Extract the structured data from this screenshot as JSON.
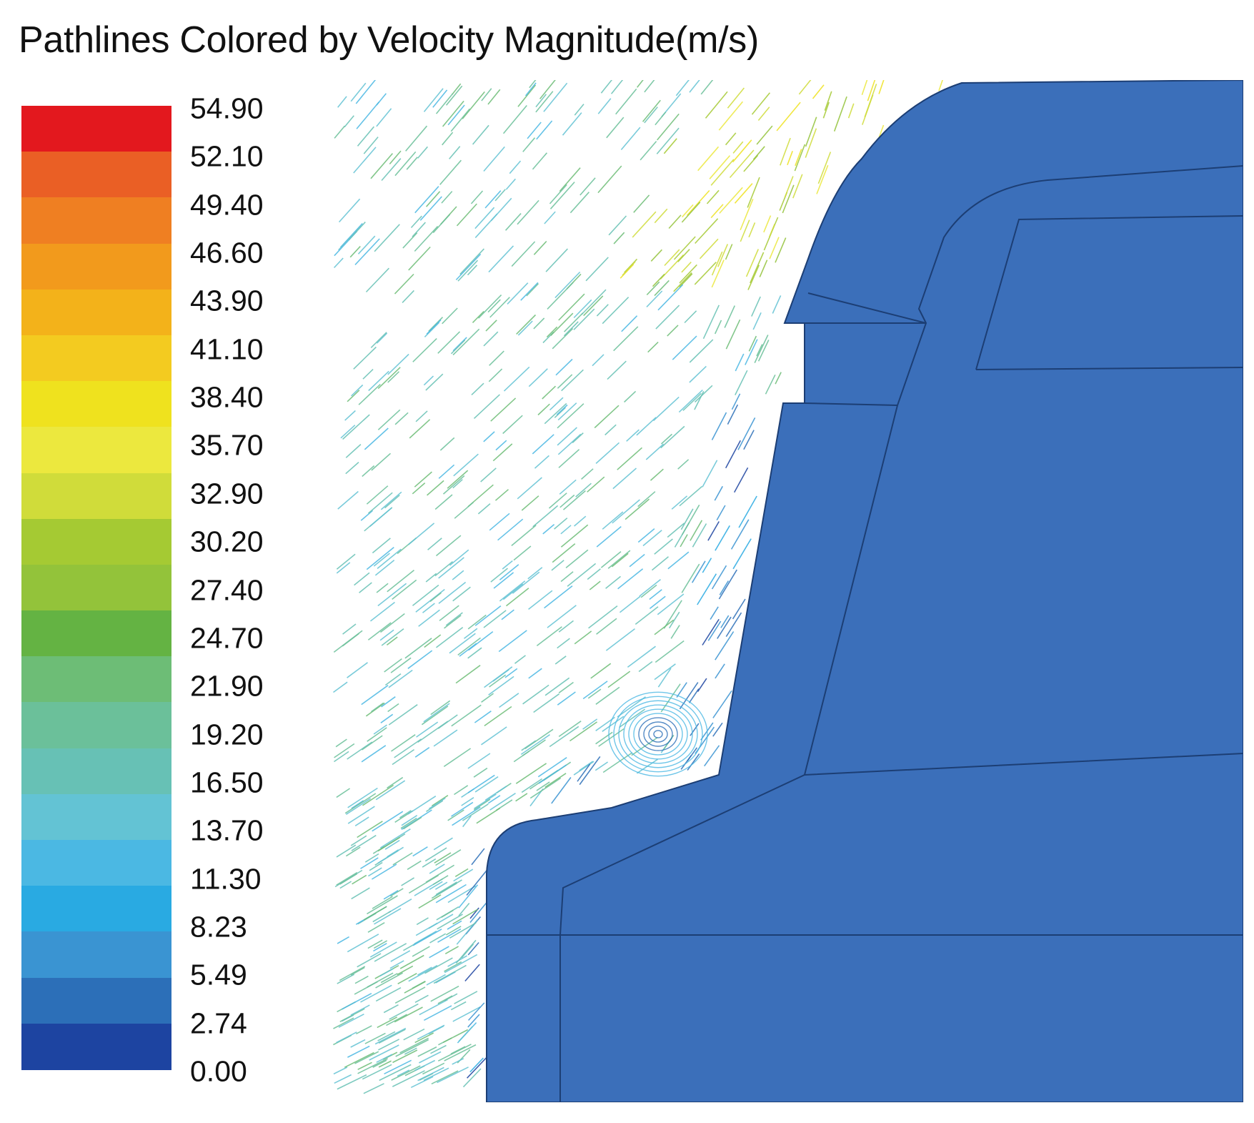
{
  "title": "Pathlines Colored by Velocity Magnitude(m/s)",
  "colorbar": {
    "labels": [
      "54.90",
      "52.10",
      "49.40",
      "46.60",
      "43.90",
      "41.10",
      "38.40",
      "35.70",
      "32.90",
      "30.20",
      "27.40",
      "24.70",
      "21.90",
      "19.20",
      "16.50",
      "13.70",
      "11.30",
      "8.23",
      "5.49",
      "2.74",
      "0.00"
    ],
    "colors": [
      "#e3181e",
      "#ea5f25",
      "#ef7f22",
      "#f29a1c",
      "#f3b21a",
      "#f3cb20",
      "#efe21e",
      "#ece83e",
      "#d0dc3a",
      "#a5ca33",
      "#93c33a",
      "#64b343",
      "#6dbd76",
      "#6bc09a",
      "#67c1b5",
      "#63c3d4",
      "#4bb8e3",
      "#29aae2",
      "#3a94d2",
      "#2c6fb8",
      "#1d44a1"
    ]
  },
  "colors": {
    "geometry_fill": "#3b6fba",
    "geometry_edge": "#1c3e74"
  }
}
